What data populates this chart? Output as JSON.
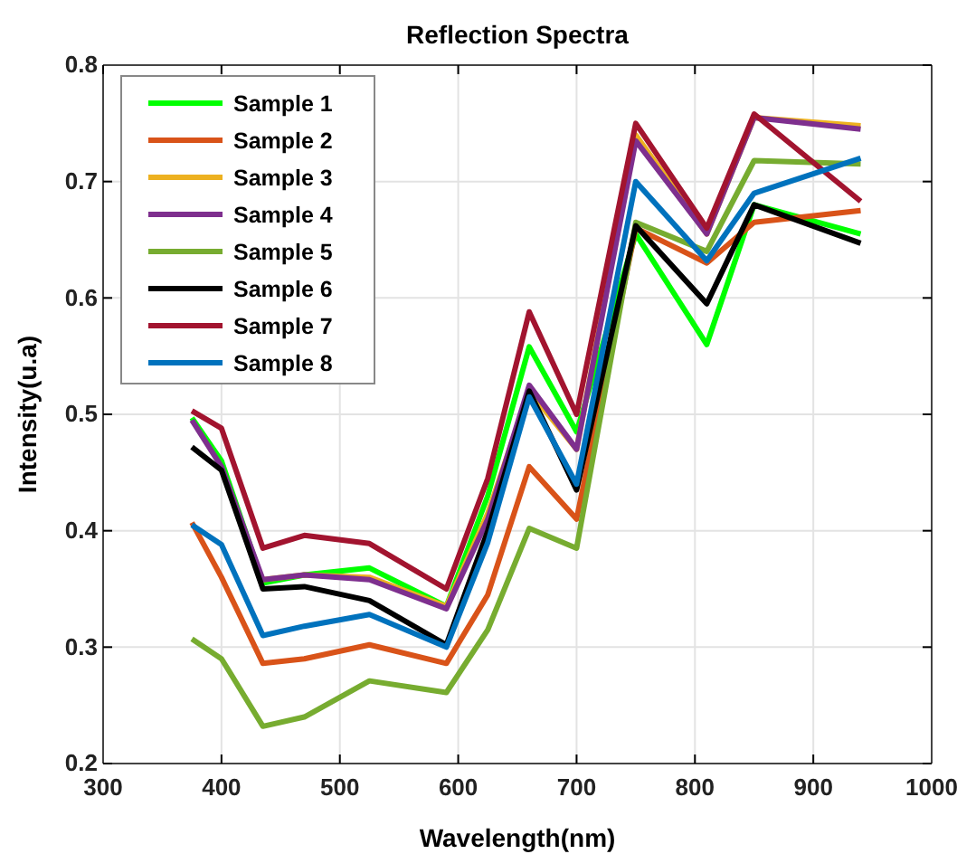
{
  "chart_data": {
    "type": "line",
    "title": "Reflection Spectra",
    "xlabel": "Wavelength(nm)",
    "ylabel": "Intensity(u.a)",
    "x": [
      375,
      400,
      435,
      470,
      525,
      590,
      625,
      660,
      700,
      750,
      810,
      850,
      940
    ],
    "xlim": [
      300,
      1000
    ],
    "xticks": [
      300,
      400,
      500,
      600,
      700,
      800,
      900,
      1000
    ],
    "ylim": [
      0.2,
      0.8
    ],
    "yticks": [
      0.2,
      0.3,
      0.4,
      0.5,
      0.6,
      0.7,
      0.8
    ],
    "grid": true,
    "legend": "top left",
    "line_style": "solid",
    "marker": "none",
    "series": [
      {
        "name": "Sample 1",
        "color": "#00ff00",
        "values": [
          0.497,
          0.46,
          0.355,
          0.362,
          0.368,
          0.335,
          0.43,
          0.558,
          0.485,
          0.655,
          0.56,
          0.68,
          0.655
        ]
      },
      {
        "name": "Sample 2",
        "color": "#d95319",
        "values": [
          0.407,
          0.36,
          0.286,
          0.29,
          0.302,
          0.286,
          0.345,
          0.455,
          0.41,
          0.66,
          0.63,
          0.665,
          0.675
        ]
      },
      {
        "name": "Sample 3",
        "color": "#edb120",
        "values": [
          null,
          null,
          0.358,
          0.362,
          0.36,
          0.335,
          0.415,
          0.52,
          0.47,
          0.74,
          0.655,
          0.755,
          0.748
        ]
      },
      {
        "name": "Sample 4",
        "color": "#7e2f8e",
        "values": [
          0.495,
          0.455,
          0.358,
          0.362,
          0.358,
          0.333,
          0.41,
          0.525,
          0.47,
          0.735,
          0.655,
          0.755,
          0.745
        ]
      },
      {
        "name": "Sample 5",
        "color": "#77ac30",
        "values": [
          0.307,
          0.29,
          0.232,
          0.24,
          0.271,
          0.261,
          0.315,
          0.402,
          0.385,
          0.665,
          0.64,
          0.718,
          0.715
        ]
      },
      {
        "name": "Sample 6",
        "color": "#000000",
        "values": [
          0.472,
          0.452,
          0.35,
          0.352,
          0.34,
          0.302,
          0.4,
          0.52,
          0.435,
          0.662,
          0.595,
          0.68,
          0.647
        ]
      },
      {
        "name": "Sample 7",
        "color": "#a2142f",
        "values": [
          0.503,
          0.488,
          0.385,
          0.396,
          0.389,
          0.35,
          0.445,
          0.588,
          0.5,
          0.75,
          0.66,
          0.758,
          0.683
        ]
      },
      {
        "name": "Sample 8",
        "color": "#0072bd",
        "values": [
          0.405,
          0.388,
          0.31,
          0.318,
          0.328,
          0.3,
          0.39,
          0.515,
          0.44,
          0.7,
          0.632,
          0.69,
          0.72
        ]
      }
    ]
  }
}
